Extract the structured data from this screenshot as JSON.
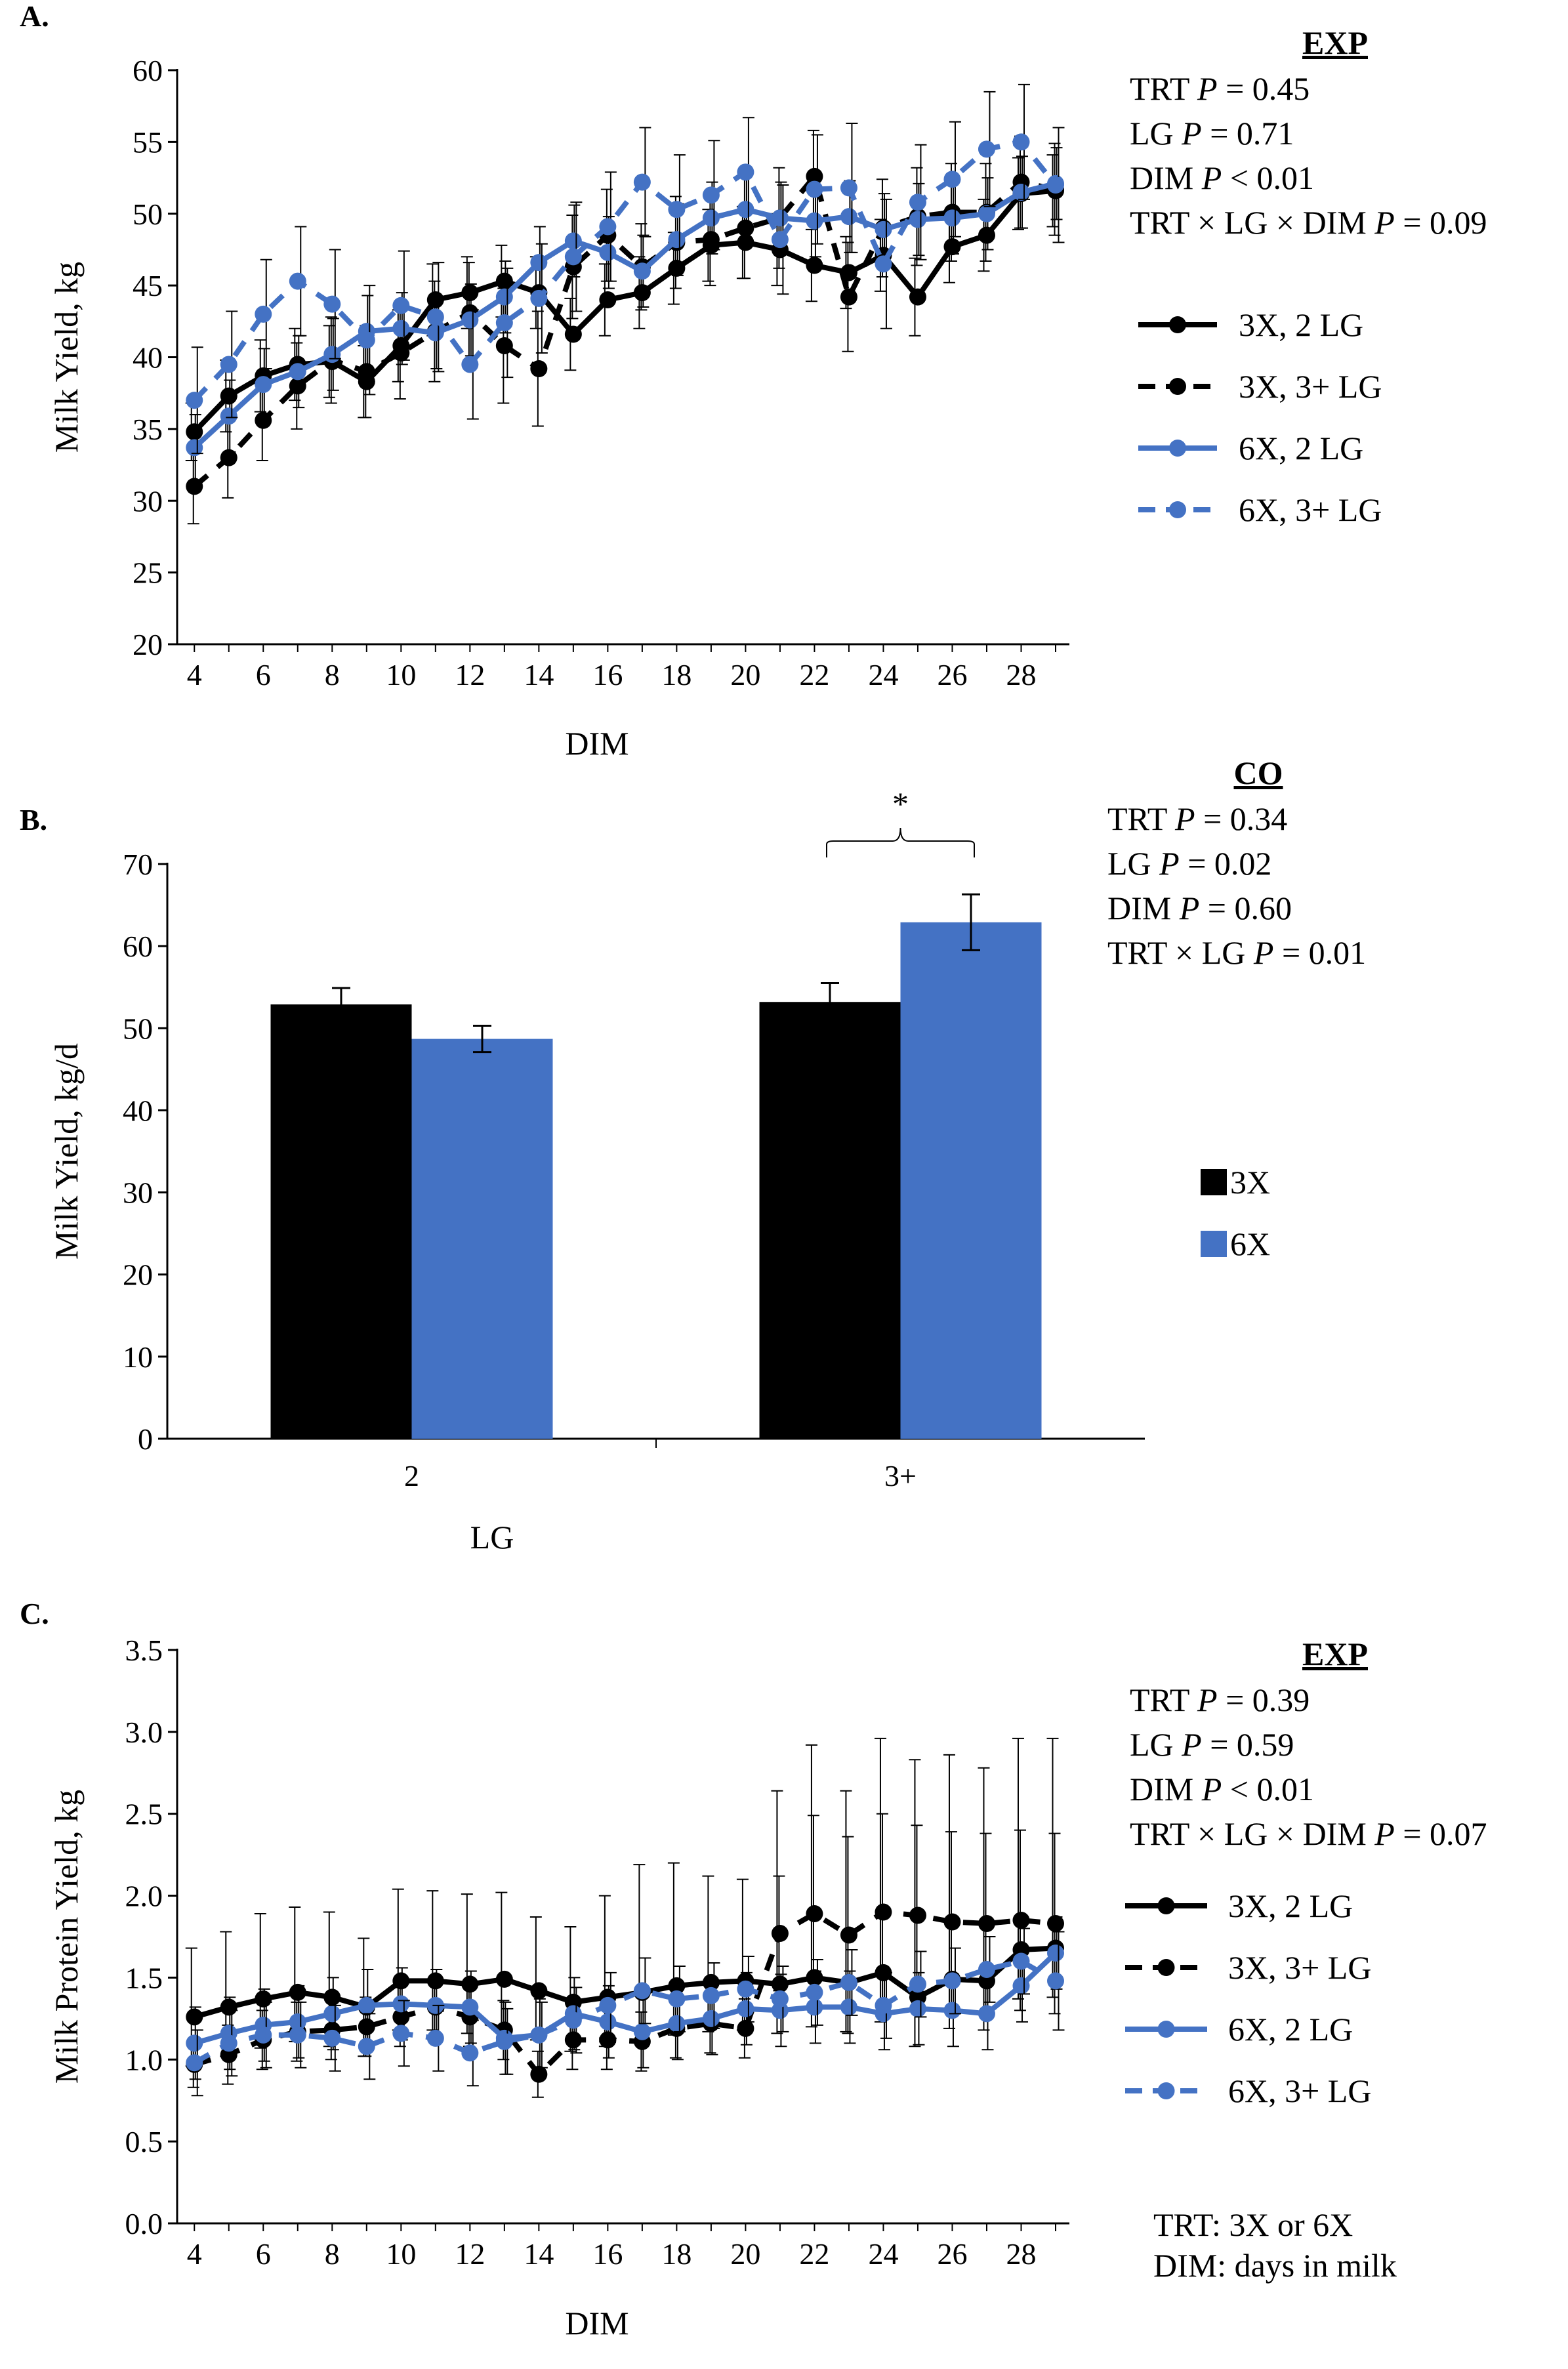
{
  "panels": [
    {
      "id": "A",
      "letter": "A.",
      "chart_data": {
        "type": "line",
        "xlabel": "DIM",
        "ylabel": "Milk Yield, kg",
        "ylim": [
          20,
          60
        ],
        "y_ticks": [
          "20",
          "25",
          "30",
          "35",
          "40",
          "45",
          "50",
          "55",
          "60"
        ],
        "x_ticks": [
          "4",
          "6",
          "8",
          "10",
          "12",
          "14",
          "16",
          "18",
          "20",
          "22",
          "24",
          "26",
          "28"
        ],
        "x": [
          4,
          5,
          6,
          7,
          8,
          9,
          10,
          11,
          12,
          13,
          14,
          15,
          16,
          17,
          18,
          19,
          20,
          21,
          22,
          23,
          24,
          25,
          26,
          27,
          28,
          29
        ],
        "legend_position": "right",
        "series": [
          {
            "name": "3X, 2 LG",
            "color": "#000000",
            "dashed": false,
            "values": [
              34.8,
              37.3,
              38.7,
              39.5,
              39.7,
              38.3,
              40.8,
              44.0,
              44.5,
              45.3,
              44.5,
              41.6,
              44.0,
              44.5,
              46.2,
              47.8,
              48.0,
              47.5,
              46.4,
              45.9,
              47.1,
              44.2,
              47.7,
              48.5,
              51.4,
              51.6
            ],
            "error": [
              2.0,
              2.5,
              2.5,
              2.5,
              2.5,
              2.5,
              2.5,
              2.5,
              2.5,
              2.5,
              2.5,
              2.5,
              2.5,
              2.5,
              2.5,
              2.5,
              2.5,
              2.5,
              2.5,
              2.5,
              2.5,
              2.7,
              2.5,
              2.5,
              2.5,
              2.5
            ]
          },
          {
            "name": "3X, 3+ LG",
            "color": "#000000",
            "dashed": true,
            "values": [
              31.0,
              33.0,
              35.6,
              38.0,
              39.8,
              39.0,
              40.3,
              41.8,
              43.1,
              40.8,
              39.2,
              46.3,
              48.5,
              46.3,
              48.0,
              48.2,
              49.0,
              49.7,
              52.6,
              44.2,
              49.0,
              49.8,
              50.1,
              50.1,
              52.2,
              51.7
            ],
            "error": [
              2.6,
              2.8,
              2.8,
              3.0,
              3.0,
              3.2,
              3.2,
              3.5,
              3.5,
              4.0,
              4.0,
              3.6,
              3.2,
              3.0,
              3.2,
              3.2,
              3.5,
              3.5,
              3.2,
              3.8,
              3.4,
              3.4,
              3.4,
              3.4,
              3.2,
              3.2
            ]
          },
          {
            "name": "6X, 2 LG",
            "color": "#4472c4",
            "dashed": false,
            "values": [
              33.7,
              35.9,
              38.1,
              39.0,
              40.2,
              41.8,
              42.0,
              41.7,
              42.6,
              44.2,
              46.6,
              48.1,
              47.3,
              46.0,
              48.2,
              49.7,
              50.3,
              49.7,
              49.5,
              49.8,
              48.9,
              49.6,
              49.7,
              50.0,
              51.5,
              52.1
            ],
            "error": [
              2.3,
              2.5,
              2.5,
              2.5,
              2.5,
              2.5,
              2.5,
              2.5,
              2.5,
              2.5,
              2.5,
              2.5,
              2.5,
              2.5,
              2.5,
              2.5,
              2.5,
              2.5,
              2.5,
              2.5,
              2.5,
              2.5,
              2.5,
              2.5,
              2.5,
              2.5
            ]
          },
          {
            "name": "6X, 3+ LG",
            "color": "#4472c4",
            "dashed": true,
            "values": [
              37.0,
              39.5,
              43.0,
              45.3,
              43.7,
              41.2,
              43.6,
              42.8,
              39.5,
              42.4,
              44.1,
              47.0,
              49.1,
              52.2,
              50.3,
              51.3,
              52.9,
              48.2,
              51.7,
              51.8,
              46.5,
              50.8,
              52.4,
              54.5,
              55.0,
              52.0
            ],
            "error": [
              3.7,
              3.7,
              3.8,
              3.8,
              3.8,
              3.8,
              3.8,
              3.8,
              3.8,
              3.8,
              3.8,
              3.8,
              3.8,
              3.8,
              3.8,
              3.8,
              3.8,
              3.8,
              3.8,
              4.5,
              4.5,
              4.0,
              4.0,
              4.0,
              4.0,
              4.0
            ]
          }
        ]
      },
      "stats_header": "EXP",
      "stats": [
        "TRT P = 0.45",
        "LG P = 0.71",
        "DIM P < 0.01",
        "TRT × LG × DIM P = 0.09"
      ],
      "notes": []
    },
    {
      "id": "B",
      "letter": "B.",
      "chart_data": {
        "type": "bar",
        "xlabel": "LG",
        "ylabel": "Milk Yield, kg/d",
        "ylim": [
          0,
          70
        ],
        "y_ticks": [
          "0",
          "10",
          "20",
          "30",
          "40",
          "50",
          "60",
          "70"
        ],
        "categories": [
          "2",
          "3+"
        ],
        "legend_position": "right",
        "series": [
          {
            "name": "3X",
            "color": "#000000",
            "values": [
              52.9,
              53.2
            ],
            "error": [
              2.0,
              2.3
            ]
          },
          {
            "name": "6X",
            "color": "#4472c4",
            "values": [
              48.7,
              62.9
            ],
            "error": [
              1.6,
              3.4
            ]
          }
        ],
        "annotation": "*"
      },
      "stats_header": "CO",
      "stats": [
        "TRT P = 0.34",
        "LG P = 0.02",
        "DIM P = 0.60",
        "TRT × LG P = 0.01"
      ],
      "notes": []
    },
    {
      "id": "C",
      "letter": "C.",
      "chart_data": {
        "type": "line",
        "xlabel": "DIM",
        "ylabel": "Milk Protein Yield, kg",
        "ylim": [
          0,
          3.5
        ],
        "y_ticks": [
          "0.0",
          "0.5",
          "1.0",
          "1.5",
          "2.0",
          "2.5",
          "3.0",
          "3.5"
        ],
        "x_ticks": [
          "4",
          "6",
          "8",
          "10",
          "12",
          "14",
          "16",
          "18",
          "20",
          "22",
          "24",
          "26",
          "28"
        ],
        "x": [
          4,
          5,
          6,
          7,
          8,
          9,
          10,
          11,
          12,
          13,
          14,
          15,
          16,
          17,
          18,
          19,
          20,
          21,
          22,
          23,
          24,
          25,
          26,
          27,
          28,
          29
        ],
        "legend_position": "right",
        "series": [
          {
            "name": "3X, 2 LG",
            "color": "#000000",
            "dashed": false,
            "values": [
              1.26,
              1.32,
              1.37,
              1.41,
              1.38,
              1.32,
              1.48,
              1.48,
              1.46,
              1.49,
              1.42,
              1.35,
              1.38,
              1.41,
              1.45,
              1.47,
              1.48,
              1.46,
              1.5,
              1.47,
              1.53,
              1.38,
              1.49,
              1.48,
              1.67,
              1.68
            ],
            "error": [
              0.42,
              0.46,
              0.52,
              0.52,
              0.52,
              0.42,
              0.56,
              0.55,
              0.55,
              0.53,
              0.45,
              0.46,
              0.62,
              0.78,
              0.75,
              0.65,
              0.62,
              1.18,
              1.42,
              1.17,
              1.43,
              1.45,
              1.37,
              1.3,
              1.29,
              1.28
            ],
            "error_down": [
              0.3,
              0.3,
              0.3,
              0.3,
              0.3,
              0.3,
              0.3,
              0.3,
              0.3,
              0.3,
              0.3,
              0.3,
              0.3,
              0.3,
              0.3,
              0.3,
              0.3,
              0.3,
              0.3,
              0.3,
              0.3,
              0.3,
              0.3,
              0.3,
              0.3,
              0.3
            ]
          },
          {
            "name": "3X, 3+ LG",
            "color": "#000000",
            "dashed": true,
            "values": [
              0.97,
              1.03,
              1.12,
              1.17,
              1.18,
              1.2,
              1.26,
              1.32,
              1.26,
              1.18,
              0.91,
              1.12,
              1.12,
              1.11,
              1.19,
              1.22,
              1.19,
              1.77,
              1.89,
              1.76,
              1.9,
              1.88,
              1.84,
              1.83,
              1.85,
              1.83
            ],
            "error": [
              0.14,
              0.18,
              0.18,
              0.18,
              0.18,
              0.18,
              0.18,
              0.18,
              0.18,
              0.18,
              0.14,
              0.18,
              0.18,
              0.18,
              0.18,
              0.18,
              0.18,
              0.35,
              0.6,
              0.6,
              0.6,
              0.55,
              0.55,
              0.55,
              0.55,
              0.55
            ]
          },
          {
            "name": "6X, 2 LG",
            "color": "#4472c4",
            "dashed": false,
            "values": [
              1.1,
              1.16,
              1.21,
              1.23,
              1.28,
              1.33,
              1.34,
              1.33,
              1.32,
              1.13,
              1.15,
              1.28,
              1.23,
              1.17,
              1.22,
              1.25,
              1.31,
              1.3,
              1.32,
              1.32,
              1.28,
              1.31,
              1.3,
              1.28,
              1.45,
              1.65
            ],
            "error": [
              0.22,
              0.22,
              0.22,
              0.22,
              0.22,
              0.22,
              0.22,
              0.22,
              0.22,
              0.22,
              0.22,
              0.22,
              0.22,
              0.22,
              0.22,
              0.22,
              0.22,
              0.22,
              0.22,
              0.22,
              0.22,
              0.22,
              0.22,
              0.22,
              0.22,
              0.22
            ]
          },
          {
            "name": "6X, 3+ LG",
            "color": "#4472c4",
            "dashed": true,
            "values": [
              0.98,
              1.1,
              1.15,
              1.15,
              1.13,
              1.08,
              1.16,
              1.13,
              1.04,
              1.11,
              1.15,
              1.24,
              1.33,
              1.42,
              1.37,
              1.39,
              1.43,
              1.37,
              1.41,
              1.47,
              1.33,
              1.46,
              1.48,
              1.55,
              1.6,
              1.48
            ],
            "error": [
              0.2,
              0.2,
              0.2,
              0.2,
              0.2,
              0.2,
              0.2,
              0.2,
              0.2,
              0.2,
              0.2,
              0.2,
              0.2,
              0.2,
              0.2,
              0.2,
              0.2,
              0.2,
              0.2,
              0.2,
              0.2,
              0.2,
              0.2,
              0.2,
              0.2,
              0.3
            ]
          }
        ]
      },
      "stats_header": "EXP",
      "stats": [
        "TRT P = 0.39",
        "LG P = 0.59",
        "DIM P < 0.01",
        "TRT × LG × DIM P = 0.07"
      ],
      "notes": [
        "TRT: 3X or 6X",
        "DIM: days in milk"
      ]
    }
  ]
}
